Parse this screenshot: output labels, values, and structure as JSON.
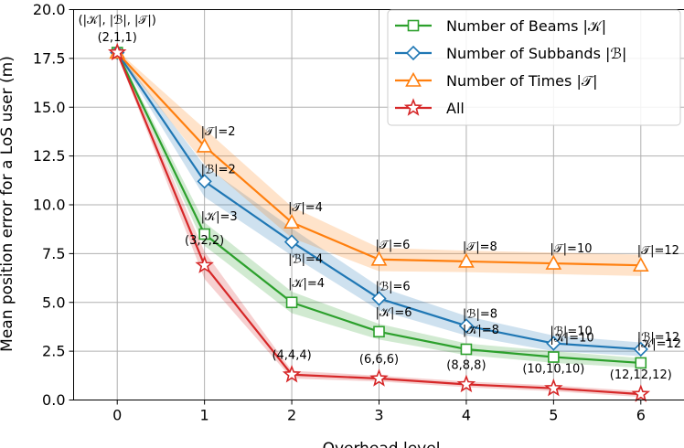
{
  "chart_data": {
    "type": "line",
    "title": "",
    "xlabel": "Overhead level",
    "ylabel": "Mean position error for a LoS user (m)",
    "xlim": [
      -0.5,
      6.5
    ],
    "ylim": [
      0.0,
      20.0
    ],
    "xticks": [
      "0",
      "1",
      "2",
      "3",
      "4",
      "5",
      "6"
    ],
    "yticks": [
      "0.0",
      "2.5",
      "5.0",
      "7.5",
      "10.0",
      "12.5",
      "15.0",
      "17.5",
      "20.0"
    ],
    "grid": true,
    "legend_position": "top-right",
    "x": [
      0,
      1,
      2,
      3,
      4,
      5,
      6
    ],
    "series": [
      {
        "name": "Number of Beams |𝒦|",
        "color": "#2ca02c",
        "marker": "square",
        "values": [
          17.8,
          8.5,
          5.0,
          3.5,
          2.6,
          2.2,
          1.9
        ],
        "band_halfwidth": [
          0.1,
          0.6,
          0.55,
          0.4,
          0.3,
          0.3,
          0.25
        ],
        "annotations": [
          "",
          "|𝒦|=3",
          "|𝒦|=4",
          "|𝒦|=6",
          "|𝒦|=8",
          "|𝒦|=10",
          "|𝒦|=12"
        ]
      },
      {
        "name": "Number of Subbands |ℬ|",
        "color": "#1f77b4",
        "marker": "diamond",
        "values": [
          17.8,
          11.2,
          8.1,
          5.2,
          3.8,
          2.9,
          2.6
        ],
        "band_halfwidth": [
          0.1,
          0.8,
          0.7,
          0.6,
          0.5,
          0.4,
          0.35
        ],
        "annotations": [
          "",
          "|ℬ|=2",
          "|ℬ|=4",
          "|ℬ|=6",
          "|ℬ|=8",
          "|ℬ|=10",
          "|ℬ|=12"
        ]
      },
      {
        "name": "Number of Times |𝒯|",
        "color": "#ff7f0e",
        "marker": "triangle",
        "values": [
          17.8,
          13.0,
          9.1,
          7.2,
          7.1,
          7.0,
          6.9
        ],
        "band_halfwidth": [
          0.1,
          0.9,
          0.8,
          0.6,
          0.55,
          0.55,
          0.55
        ],
        "annotations": [
          "",
          "|𝒯|=2",
          "|𝒯|=4",
          "|𝒯|=6",
          "|𝒯|=8",
          "|𝒯|=10",
          "|𝒯|=12"
        ]
      },
      {
        "name": "All",
        "color": "#d62728",
        "marker": "star",
        "values": [
          17.8,
          6.9,
          1.3,
          1.1,
          0.8,
          0.6,
          0.3
        ],
        "band_halfwidth": [
          0.1,
          0.7,
          0.2,
          0.15,
          0.15,
          0.15,
          0.15
        ],
        "annotations": [
          "",
          "(3,2,2)",
          "(4,4,4)",
          "(6,6,6)",
          "(8,8,8)",
          "(10,10,10)",
          "(12,12,12)"
        ]
      }
    ],
    "origin_annotation": [
      "(|𝒦|, |ℬ|, |𝒯|)",
      "(2,1,1)"
    ]
  }
}
